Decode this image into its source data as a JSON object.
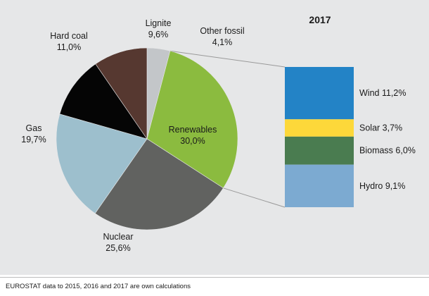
{
  "chart_data": [
    {
      "type": "pie",
      "title": "",
      "slices": [
        {
          "key": "renewables",
          "label": "Renewables",
          "value": 30.0,
          "value_text": "30,0%",
          "color": "#8bbb3f"
        },
        {
          "key": "nuclear",
          "label": "Nuclear",
          "value": 25.6,
          "value_text": "25,6%",
          "color": "#616260"
        },
        {
          "key": "gas",
          "label": "Gas",
          "value": 19.7,
          "value_text": "19,7%",
          "color": "#9dbfcd"
        },
        {
          "key": "hard_coal",
          "label": "Hard coal",
          "value": 11.0,
          "value_text": "11,0%",
          "color": "#050505"
        },
        {
          "key": "lignite",
          "label": "Lignite",
          "value": 9.6,
          "value_text": "9,6%",
          "color": "#563830"
        },
        {
          "key": "other_fossil",
          "label": "Other fossil",
          "value": 4.1,
          "value_text": "4,1%",
          "color": "#c3c6c9"
        }
      ],
      "slice_order_from_12_oclock_clockwise": [
        "other_fossil",
        "renewables",
        "nuclear",
        "gas",
        "hard_coal",
        "lignite"
      ]
    },
    {
      "type": "bar",
      "stacked": true,
      "title": "2017",
      "breakdown_of": "Renewables",
      "segments": [
        {
          "label": "Wind",
          "value": 11.2,
          "value_text": "11,2%",
          "color": "#2383c6"
        },
        {
          "label": "Solar",
          "value": 3.7,
          "value_text": "3,7%",
          "color": "#fdd83a"
        },
        {
          "label": "Biomass",
          "value": 6.0,
          "value_text": "6,0%",
          "color": "#4a7c50"
        },
        {
          "label": "Hydro",
          "value": 9.1,
          "value_text": "9,1%",
          "color": "#7caad1"
        }
      ]
    }
  ],
  "colors": {
    "panel_background": "#e6e7e8",
    "connector_line": "#999999"
  },
  "footer": {
    "source_note": "EUROSTAT data to 2015, 2016 and 2017 are own calculations"
  }
}
